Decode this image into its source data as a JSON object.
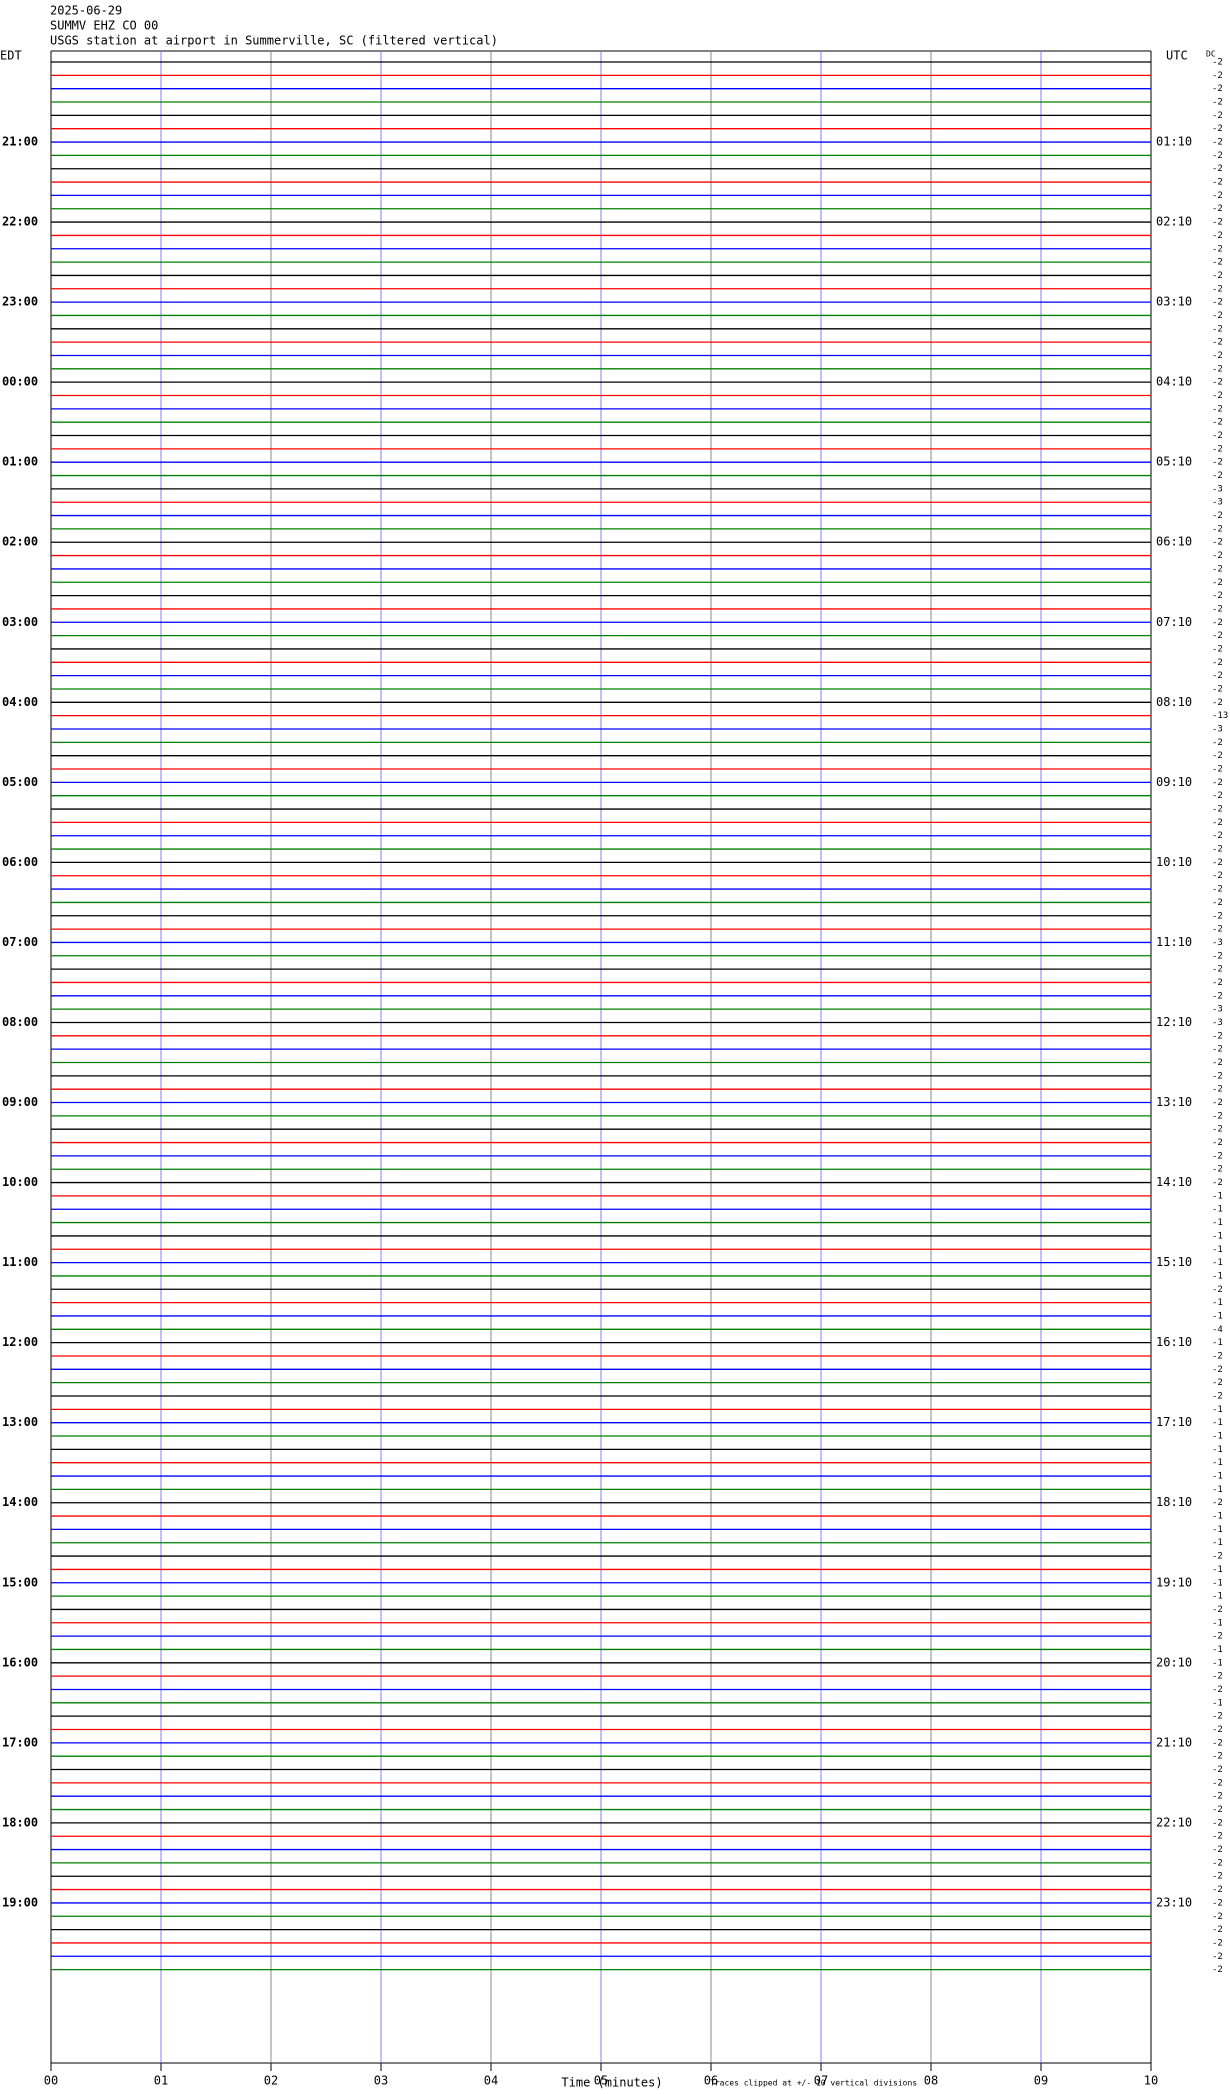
{
  "chart_data": {
    "type": "helicorder",
    "date": "2025-06-29",
    "station": "SUMMV EHZ CO 00",
    "title": "USGS station at airport in Summerville, SC (filtered vertical)",
    "left_zone": "EDT",
    "right_zone": "UTC",
    "scale_header": "DC",
    "xlabel": "Time (minutes)",
    "footnote": "Traces clipped at +/- 10 vertical divisions",
    "colors": [
      "#000000",
      "#ff0000",
      "#0000ff",
      "#008000"
    ],
    "xlim": [
      0,
      10
    ],
    "xticks": [
      {
        "value": 0,
        "label": "00"
      },
      {
        "value": 1,
        "label": "01"
      },
      {
        "value": 2,
        "label": "02"
      },
      {
        "value": 3,
        "label": "03"
      },
      {
        "value": 4,
        "label": "04"
      },
      {
        "value": 5,
        "label": "05"
      },
      {
        "value": 6,
        "label": "06"
      },
      {
        "value": 7,
        "label": "07"
      },
      {
        "value": 8,
        "label": "08"
      },
      {
        "value": 9,
        "label": "09"
      },
      {
        "value": 10,
        "label": "10"
      }
    ],
    "grid": true,
    "edt_labels": [
      null,
      null,
      null,
      null,
      null,
      null,
      "21:00",
      null,
      null,
      null,
      null,
      null,
      "22:00",
      null,
      null,
      null,
      null,
      null,
      "23:00",
      null,
      null,
      null,
      null,
      null,
      "00:00",
      null,
      null,
      null,
      null,
      null,
      "01:00",
      null,
      null,
      null,
      null,
      null,
      "02:00",
      null,
      null,
      null,
      null,
      null,
      "03:00",
      null,
      null,
      null,
      null,
      null,
      "04:00",
      null,
      null,
      null,
      null,
      null,
      "05:00",
      null,
      null,
      null,
      null,
      null,
      "06:00",
      null,
      null,
      null,
      null,
      null,
      "07:00",
      null,
      null,
      null,
      null,
      null,
      "08:00",
      null,
      null,
      null,
      null,
      null,
      "09:00",
      null,
      null,
      null,
      null,
      null,
      "10:00",
      null,
      null,
      null,
      null,
      null,
      "11:00",
      null,
      null,
      null,
      null,
      null,
      "12:00",
      null,
      null,
      null,
      null,
      null,
      "13:00",
      null,
      null,
      null,
      null,
      null,
      "14:00",
      null,
      null,
      null,
      null,
      null,
      "15:00",
      null,
      null,
      null,
      null,
      null,
      "16:00",
      null,
      null,
      null,
      null,
      null,
      "17:00",
      null,
      null,
      null,
      null,
      null,
      "18:00",
      null,
      null,
      null,
      null,
      null,
      "19:00",
      null,
      null,
      null,
      null,
      null
    ],
    "utc_labels": [
      null,
      null,
      null,
      null,
      null,
      null,
      "01:10",
      null,
      null,
      null,
      null,
      null,
      "02:10",
      null,
      null,
      null,
      null,
      null,
      "03:10",
      null,
      null,
      null,
      null,
      null,
      "04:10",
      null,
      null,
      null,
      null,
      null,
      "05:10",
      null,
      null,
      null,
      null,
      null,
      "06:10",
      null,
      null,
      null,
      null,
      null,
      "07:10",
      null,
      null,
      null,
      null,
      null,
      "08:10",
      null,
      null,
      null,
      null,
      null,
      "09:10",
      null,
      null,
      null,
      null,
      null,
      "10:10",
      null,
      null,
      null,
      null,
      null,
      "11:10",
      null,
      null,
      null,
      null,
      null,
      "12:10",
      null,
      null,
      null,
      null,
      null,
      "13:10",
      null,
      null,
      null,
      null,
      null,
      "14:10",
      null,
      null,
      null,
      null,
      null,
      "15:10",
      null,
      null,
      null,
      null,
      null,
      "16:10",
      null,
      null,
      null,
      null,
      null,
      "17:10",
      null,
      null,
      null,
      null,
      null,
      "18:10",
      null,
      null,
      null,
      null,
      null,
      "19:10",
      null,
      null,
      null,
      null,
      null,
      "20:10",
      null,
      null,
      null,
      null,
      null,
      "21:10",
      null,
      null,
      null,
      null,
      null,
      "22:10",
      null,
      null,
      null,
      null,
      null,
      "23:10",
      null,
      null,
      null,
      null,
      null
    ],
    "scale_values": [
      -2,
      -2,
      -2,
      -2,
      -2,
      -2,
      -2,
      -2,
      -2,
      -2,
      -2,
      -2,
      -2,
      -2,
      -2,
      -2,
      -2,
      -2,
      -2,
      -2,
      -2,
      -2,
      -2,
      -2,
      -2,
      -2,
      -2,
      -2,
      -2,
      -2,
      -2,
      -2,
      -3,
      -3,
      -2,
      -2,
      -2,
      -2,
      -2,
      -2,
      -2,
      -2,
      -2,
      -2,
      -2,
      -2,
      -2,
      -2,
      -2,
      -13,
      -3,
      -2,
      -2,
      -2,
      -2,
      -2,
      -2,
      -2,
      -2,
      -2,
      -2,
      -2,
      -2,
      -2,
      -2,
      -2,
      -3,
      -2,
      -2,
      -2,
      -2,
      -3,
      -3,
      -2,
      -2,
      -2,
      -2,
      -2,
      -2,
      -2,
      -2,
      -2,
      -2,
      -2,
      -2,
      -1,
      -1,
      -1,
      -1,
      -1,
      -1,
      -1,
      -2,
      -1,
      -1,
      -4,
      -1,
      -2,
      -2,
      -2,
      -2,
      -1,
      -1,
      -1,
      -1,
      -1,
      -1,
      -1,
      -2,
      -1,
      -1,
      -1,
      -2,
      -1,
      -1,
      -1,
      -2,
      -1,
      -2,
      -1,
      -1,
      -2,
      -2,
      -1,
      -2,
      -2,
      -2,
      -2,
      -2,
      -2,
      -2,
      -2,
      -2,
      -2,
      -2,
      -2,
      -2,
      -2,
      -2,
      -2,
      -2,
      -2,
      -2,
      -2
    ]
  }
}
